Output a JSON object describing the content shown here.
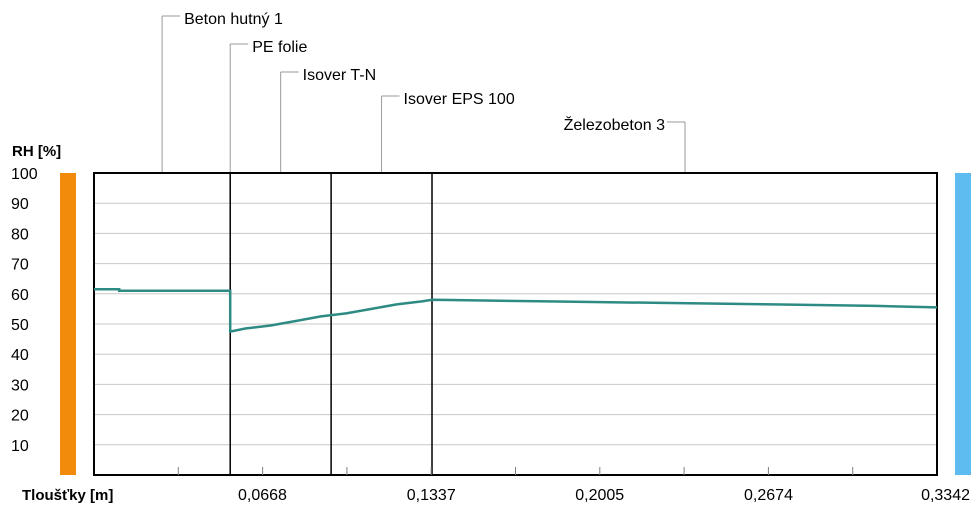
{
  "chart_data": {
    "type": "line",
    "ylabel": "RH [%]",
    "xlabel": "Tloušťky [m]",
    "ylim": [
      0,
      100
    ],
    "xlim": [
      0,
      0.3342
    ],
    "yticks": [
      "100",
      "90",
      "80",
      "70",
      "60",
      "50",
      "40",
      "30",
      "20",
      "10"
    ],
    "xticks": [
      "0,0668",
      "0,1337",
      "0,2005",
      "0,2674",
      "0,3342"
    ],
    "grid": true,
    "layers": [
      {
        "name": "Beton hutný 1",
        "start": 0.0,
        "end": 0.054
      },
      {
        "name": "PE folie",
        "start": 0.054,
        "end": 0.054
      },
      {
        "name": "Isover T-N",
        "start": 0.054,
        "end": 0.094
      },
      {
        "name": "Isover EPS 100",
        "start": 0.094,
        "end": 0.134
      },
      {
        "name": "Železobeton 3",
        "start": 0.134,
        "end": 0.3342
      }
    ],
    "series": [
      {
        "x": [
          0.0,
          0.01,
          0.01,
          0.054,
          0.054,
          0.054,
          0.06,
          0.07,
          0.08,
          0.09,
          0.1,
          0.11,
          0.12,
          0.13,
          0.134,
          0.18,
          0.225,
          0.269,
          0.31,
          0.3342
        ],
        "y": [
          61.5,
          61.5,
          61,
          61,
          61,
          47.5,
          48.5,
          49.5,
          51,
          52.5,
          53.5,
          55,
          56.5,
          57.5,
          58,
          57.5,
          57,
          56.5,
          56,
          55.5
        ]
      }
    ],
    "colors": {
      "line": "#2e8b84",
      "interior_bar": "#f28a0c",
      "exterior_bar": "#5fbcf0",
      "grid": "#c8c8c8",
      "frame": "#000000"
    }
  }
}
